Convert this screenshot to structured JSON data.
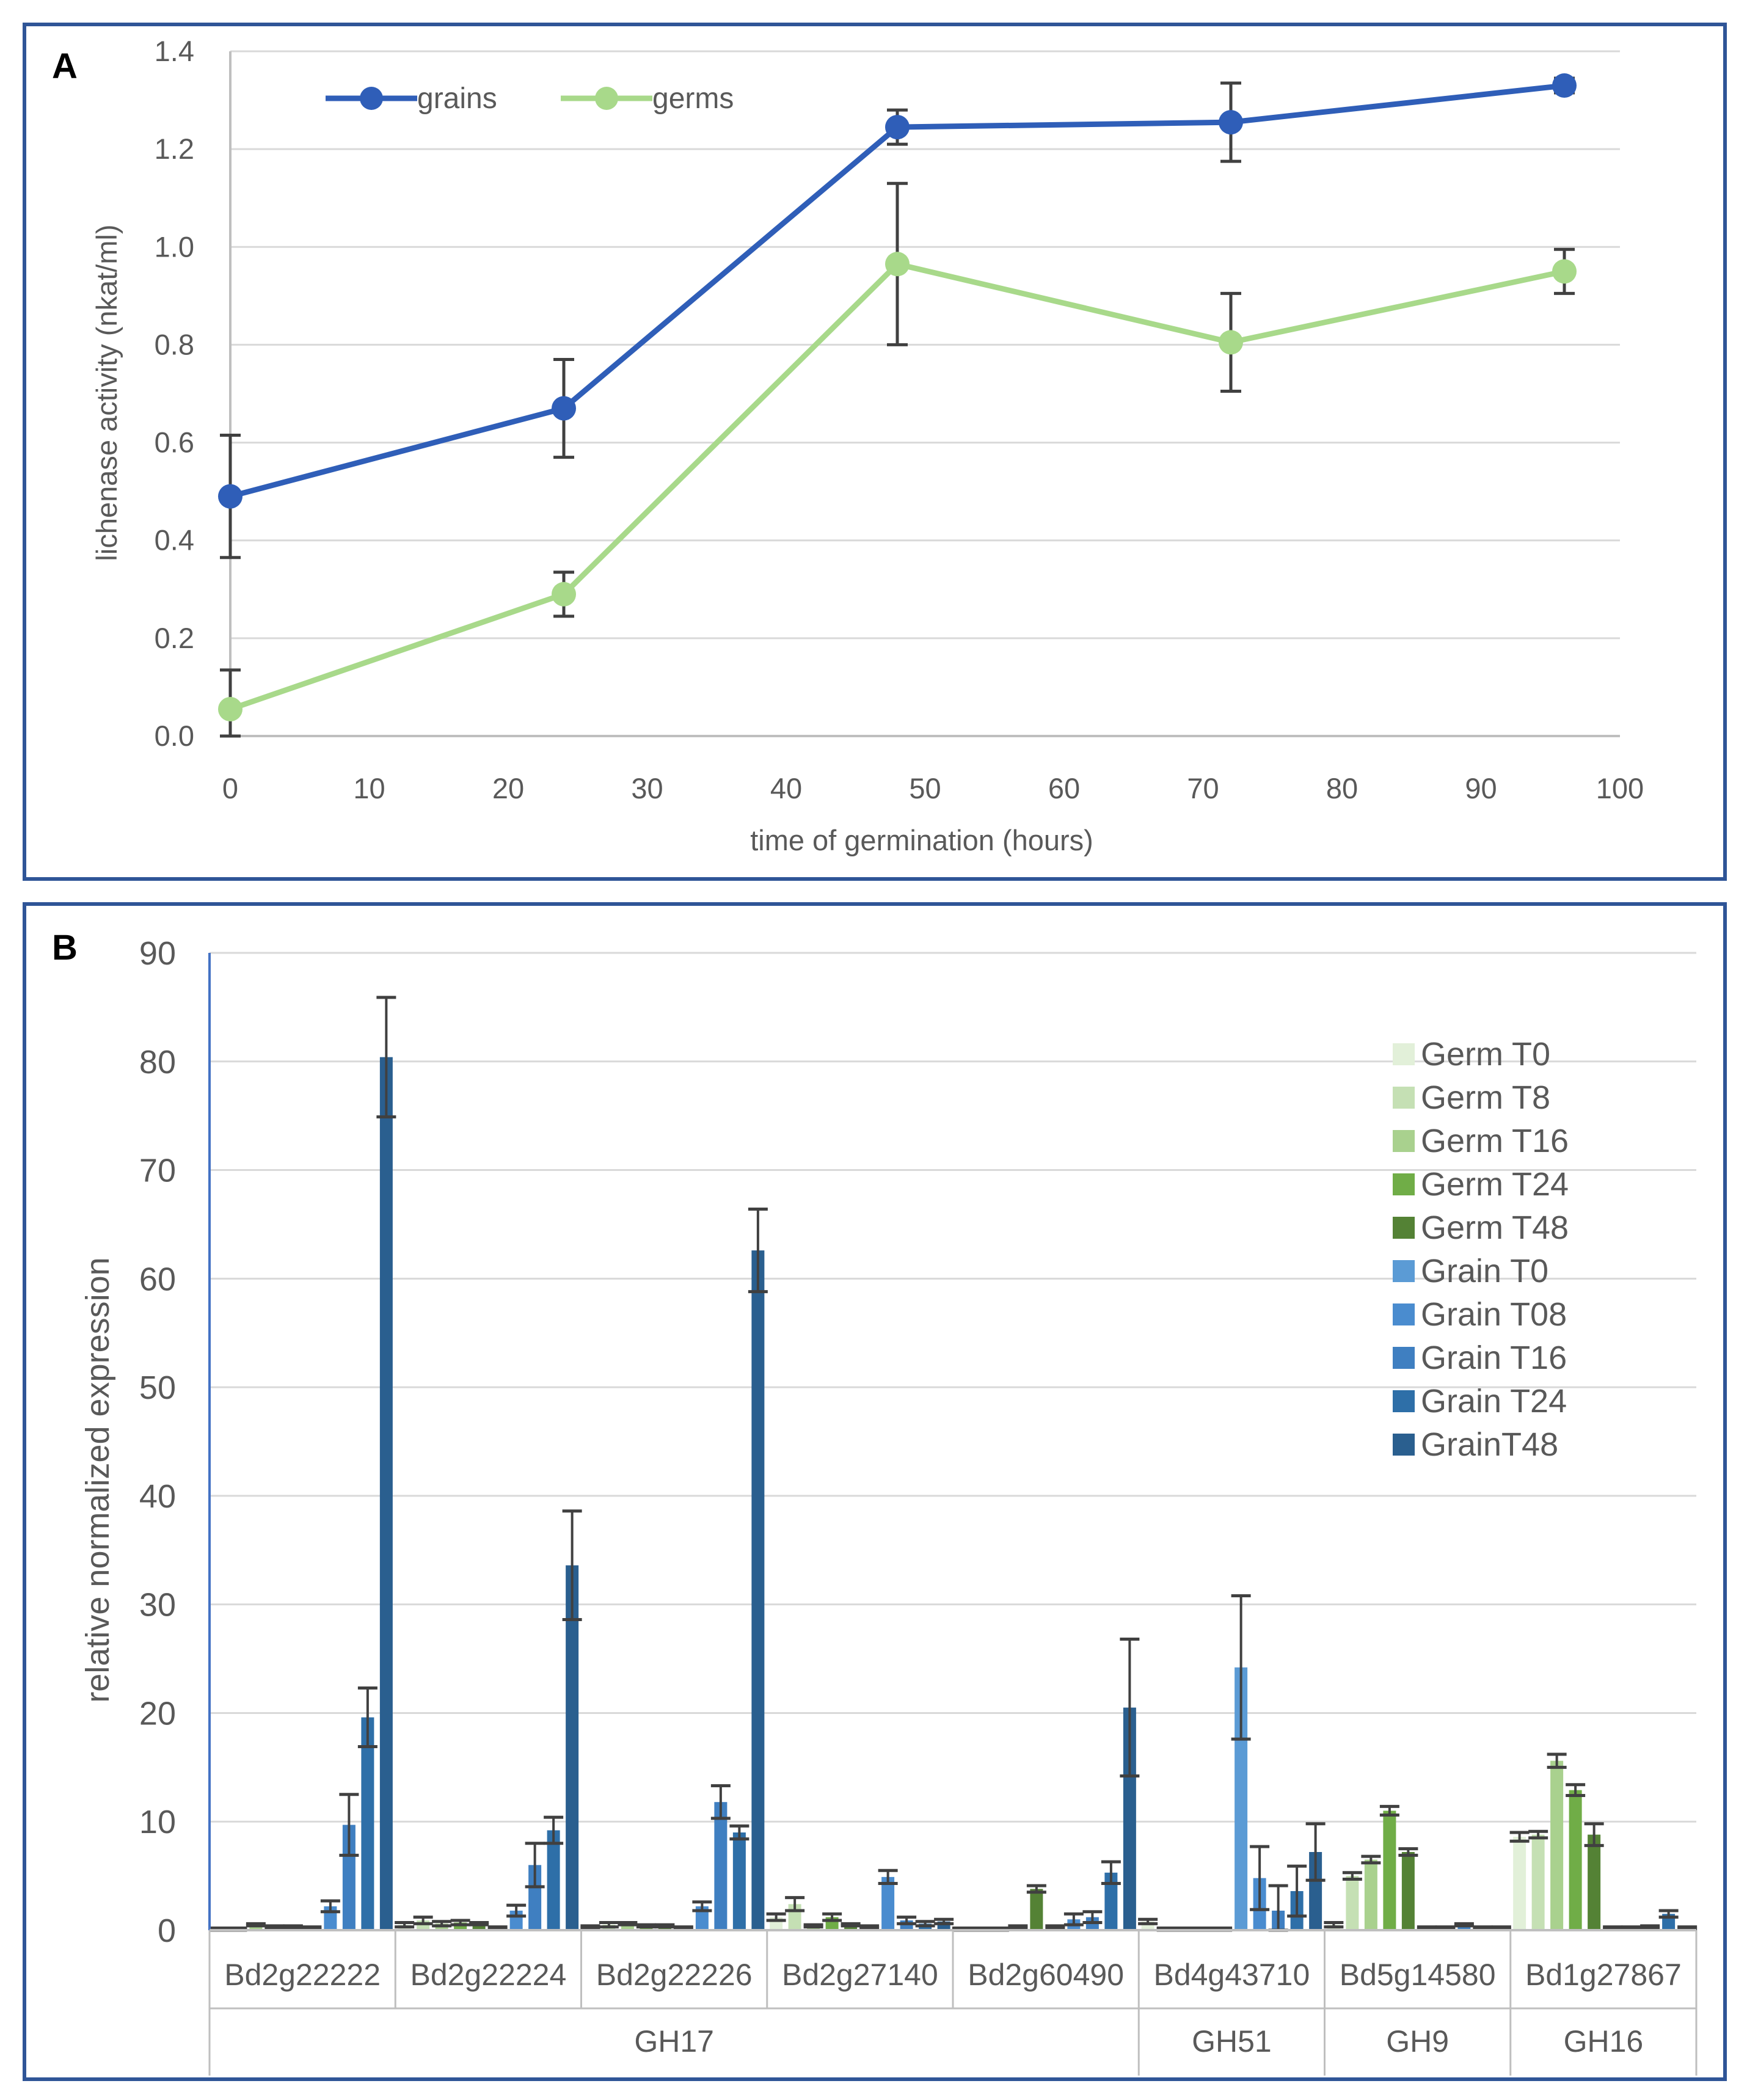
{
  "chart_data": [
    {
      "panel_label": "A",
      "type": "line",
      "xlabel": "time of germination (hours)",
      "ylabel": "lichenase activity (nkat/ml)",
      "xlim": [
        0,
        100
      ],
      "ylim": [
        0,
        1.4
      ],
      "x_ticks": [
        "0",
        "10",
        "20",
        "30",
        "40",
        "50",
        "60",
        "70",
        "80",
        "90",
        "100"
      ],
      "y_ticks": [
        "0.0",
        "0.2",
        "0.4",
        "0.6",
        "0.8",
        "1.0",
        "1.2",
        "1.4"
      ],
      "grid": true,
      "legend_position": "top-left",
      "series": [
        {
          "name": "grains",
          "color": "#2f5eb8",
          "x": [
            0,
            24,
            48,
            72,
            96
          ],
          "values": [
            0.49,
            0.67,
            1.245,
            1.255,
            1.33
          ],
          "errors": [
            0.125,
            0.1,
            0.035,
            0.08,
            0.015
          ]
        },
        {
          "name": "germs",
          "color": "#a8d98a",
          "x": [
            0,
            24,
            48,
            72,
            96
          ],
          "values": [
            0.055,
            0.29,
            0.965,
            0.805,
            0.95
          ],
          "errors": [
            0.08,
            0.045,
            0.165,
            0.1,
            0.045
          ]
        }
      ]
    },
    {
      "panel_label": "B",
      "type": "bar",
      "ylabel": "relative normalized expression",
      "ylim": [
        0,
        90
      ],
      "y_ticks": [
        "0",
        "10",
        "20",
        "30",
        "40",
        "50",
        "60",
        "70",
        "80",
        "90"
      ],
      "grid": true,
      "legend_position": "top-right",
      "categories": [
        "Bd2g22222",
        "Bd2g22224",
        "Bd2g22226",
        "Bd2g27140",
        "Bd2g60490",
        "Bd4g43710",
        "Bd5g14580",
        "Bd1g27867"
      ],
      "groups": [
        {
          "label": "GH17",
          "start": 0,
          "end": 4
        },
        {
          "label": "GH51",
          "start": 5,
          "end": 5
        },
        {
          "label": "GH9",
          "start": 6,
          "end": 6
        },
        {
          "label": "GH16",
          "start": 7,
          "end": 7
        }
      ],
      "series": [
        {
          "name": "Germ T0",
          "color": "#e2f0d9",
          "values": [
            0.1,
            0.5,
            0.3,
            1.2,
            0.1,
            0.8,
            0.5,
            8.6
          ],
          "errors": [
            0.1,
            0.2,
            0.1,
            0.3,
            0.1,
            0.2,
            0.2,
            0.4
          ]
        },
        {
          "name": "Germ T8",
          "color": "#c5e0b4",
          "values": [
            0.1,
            0.9,
            0.5,
            2.4,
            0.1,
            0.1,
            5.0,
            8.8
          ],
          "errors": [
            0.1,
            0.3,
            0.2,
            0.6,
            0.1,
            0.1,
            0.3,
            0.3
          ]
        },
        {
          "name": "Germ T16",
          "color": "#a9d18e",
          "values": [
            0.5,
            0.6,
            0.6,
            0.4,
            0.1,
            0.1,
            6.5,
            15.6
          ],
          "errors": [
            0.1,
            0.2,
            0.1,
            0.1,
            0.1,
            0.1,
            0.3,
            0.6
          ]
        },
        {
          "name": "Germ T24",
          "color": "#70ad47",
          "values": [
            0.3,
            0.7,
            0.4,
            1.2,
            0.3,
            0.1,
            11.0,
            12.9
          ],
          "errors": [
            0.1,
            0.2,
            0.1,
            0.3,
            0.1,
            0.1,
            0.4,
            0.5
          ]
        },
        {
          "name": "Germ T48",
          "color": "#548235",
          "values": [
            0.3,
            0.6,
            0.4,
            0.5,
            3.8,
            0.1,
            7.2,
            8.8
          ],
          "errors": [
            0.1,
            0.1,
            0.1,
            0.1,
            0.3,
            0.1,
            0.3,
            1.0
          ]
        },
        {
          "name": "Grain T0",
          "color": "#5b9bd5",
          "values": [
            0.2,
            0.2,
            0.2,
            0.3,
            0.3,
            24.2,
            0.2,
            0.2
          ],
          "errors": [
            0.1,
            0.1,
            0.1,
            0.1,
            0.1,
            6.6,
            0.1,
            0.1
          ]
        },
        {
          "name": "Grain T08",
          "color": "#4a8ccf",
          "values": [
            2.2,
            1.8,
            2.2,
            4.9,
            1.0,
            4.8,
            0.2,
            0.2
          ],
          "errors": [
            0.5,
            0.5,
            0.4,
            0.6,
            0.5,
            2.9,
            0.1,
            0.1
          ]
        },
        {
          "name": "Grain T16",
          "color": "#3f7fc1",
          "values": [
            9.7,
            6.0,
            11.8,
            0.9,
            1.2,
            1.8,
            0.5,
            0.3
          ],
          "errors": [
            2.8,
            2.0,
            1.5,
            0.3,
            0.5,
            2.3,
            0.1,
            0.1
          ]
        },
        {
          "name": "Grain T24",
          "color": "#2e6fa8",
          "values": [
            19.6,
            9.2,
            9.0,
            0.6,
            5.3,
            3.6,
            0.2,
            1.5
          ],
          "errors": [
            2.7,
            1.2,
            0.6,
            0.2,
            1.0,
            2.3,
            0.1,
            0.3
          ]
        },
        {
          "name": "GrainT48",
          "color": "#2a5f8f",
          "values": [
            80.4,
            33.6,
            62.6,
            0.8,
            20.5,
            7.2,
            0.2,
            0.2
          ],
          "errors": [
            5.5,
            5.0,
            3.8,
            0.2,
            6.3,
            2.6,
            0.1,
            0.1
          ]
        }
      ]
    }
  ]
}
